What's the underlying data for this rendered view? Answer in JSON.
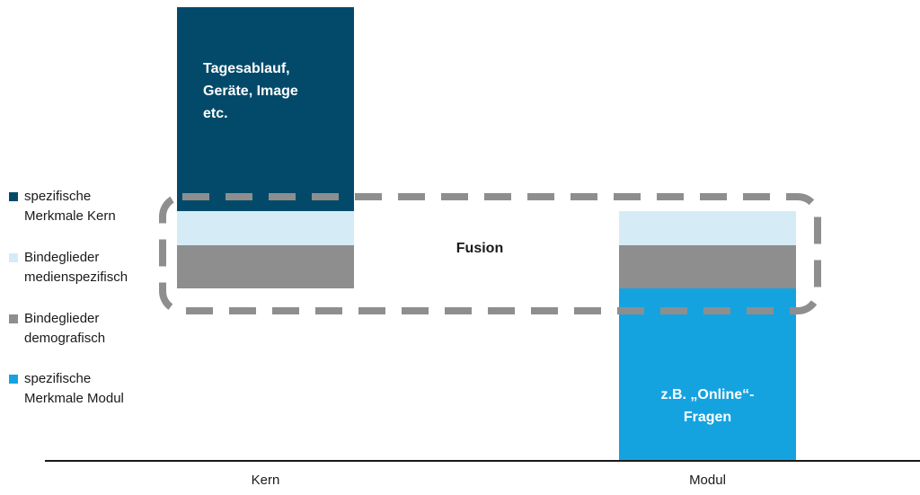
{
  "legend": [
    {
      "label": "spezifische\nMerkmale Kern",
      "color": "#034a6a"
    },
    {
      "label": "Bindeglieder\nmedienspezifisch",
      "color": "#d5ecf7"
    },
    {
      "label": "Bindeglieder\ndemografisch",
      "color": "#8e8e8e"
    },
    {
      "label": "spezifische\nMerkmale Modul",
      "color": "#15a3e0"
    }
  ],
  "kern": {
    "label": "Kern",
    "text": "Tagesablauf,\nGeräte, Image\netc."
  },
  "modul": {
    "label": "Modul",
    "text": "z.B. „Online“-\nFragen"
  },
  "fusion_label": "Fusion",
  "colors": {
    "frame": "#8e8e8e",
    "axis": "#1a1a1a"
  }
}
